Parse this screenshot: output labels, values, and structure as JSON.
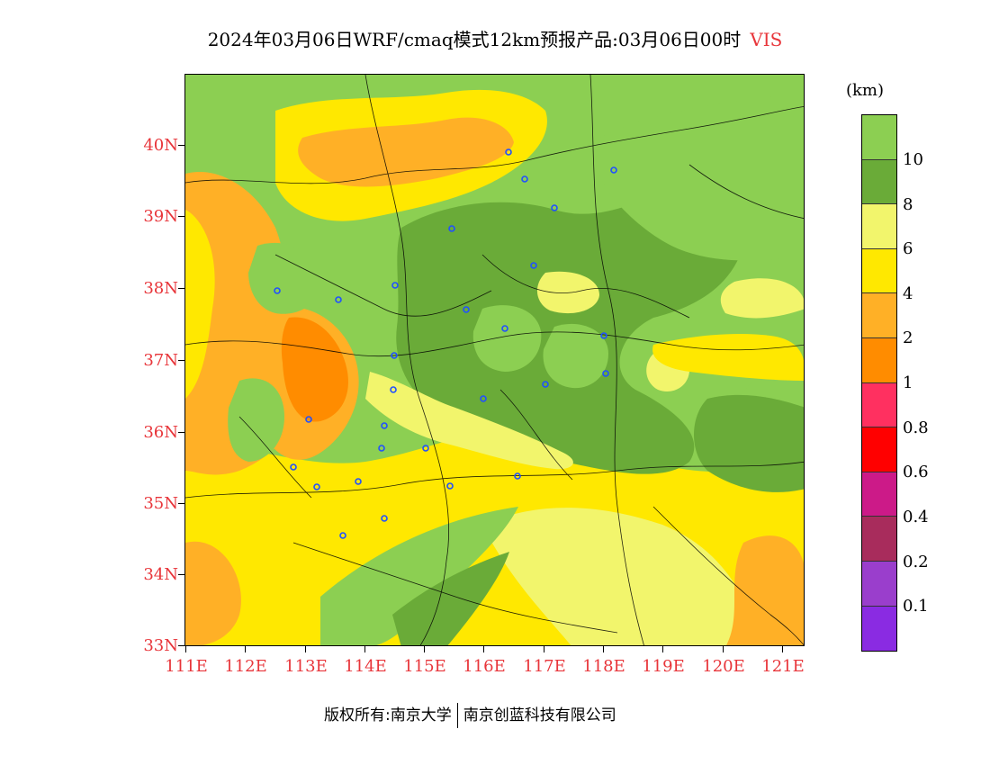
{
  "title": {
    "main": "2024年03月06日WRF/cmaq模式12km预报产品:03月06日00时",
    "variable": "VIS"
  },
  "axes": {
    "lat_labels": [
      "40N",
      "39N",
      "38N",
      "37N",
      "36N",
      "35N",
      "34N",
      "33N"
    ],
    "lon_labels": [
      "111E",
      "112E",
      "113E",
      "114E",
      "115E",
      "116E",
      "117E",
      "118E",
      "119E",
      "120E",
      "121E"
    ]
  },
  "legend": {
    "unit": "(km)",
    "boundary_labels": [
      "10",
      "8",
      "6",
      "4",
      "2",
      "1",
      "0.8",
      "0.6",
      "0.4",
      "0.2",
      "0.1"
    ],
    "colors": [
      "#8ccf52",
      "#6aab38",
      "#f2f56c",
      "#ffe800",
      "#ffb026",
      "#ff8c00",
      "#ff3060",
      "#ff0000",
      "#cc1a88",
      "#a82c5c",
      "#9a3ecc",
      "#8a2be2"
    ]
  },
  "copyright": {
    "left": "版权所有:南京大学",
    "right": "南京创蓝科技有限公司"
  }
}
